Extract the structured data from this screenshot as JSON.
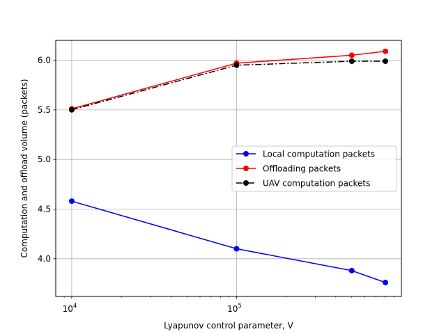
{
  "chart_data": {
    "type": "line",
    "x_scale": "log",
    "xlabel": "Lyapunov control parameter, V",
    "ylabel": "Computation and offload volume (packets)",
    "xlim": [
      8000,
      1000000
    ],
    "ylim": [
      3.62,
      6.2
    ],
    "x_ticks": [
      {
        "value": 10000,
        "base": "10",
        "exp": "4"
      },
      {
        "value": 100000,
        "base": "10",
        "exp": "5"
      }
    ],
    "y_ticks": [
      4.0,
      4.5,
      5.0,
      5.5,
      6.0
    ],
    "y_tick_labels": [
      "4.0",
      "4.5",
      "5.0",
      "5.5",
      "6.0"
    ],
    "grid": true,
    "legend_position": "center-right",
    "x": [
      10000,
      100000,
      500000,
      800000
    ],
    "series": [
      {
        "name": "Local computation packets",
        "color": "#0000ff",
        "linestyle": "solid",
        "marker": "circle",
        "values": [
          4.58,
          4.1,
          3.88,
          3.76
        ]
      },
      {
        "name": "Offloading packets",
        "color": "#ff0000",
        "linestyle": "solid",
        "marker": "circle",
        "values": [
          5.51,
          5.97,
          6.05,
          6.09
        ]
      },
      {
        "name": "UAV computation packets",
        "color": "#000000",
        "linestyle": "dashdot",
        "marker": "circle",
        "values": [
          5.5,
          5.95,
          5.99,
          5.99
        ]
      }
    ]
  }
}
